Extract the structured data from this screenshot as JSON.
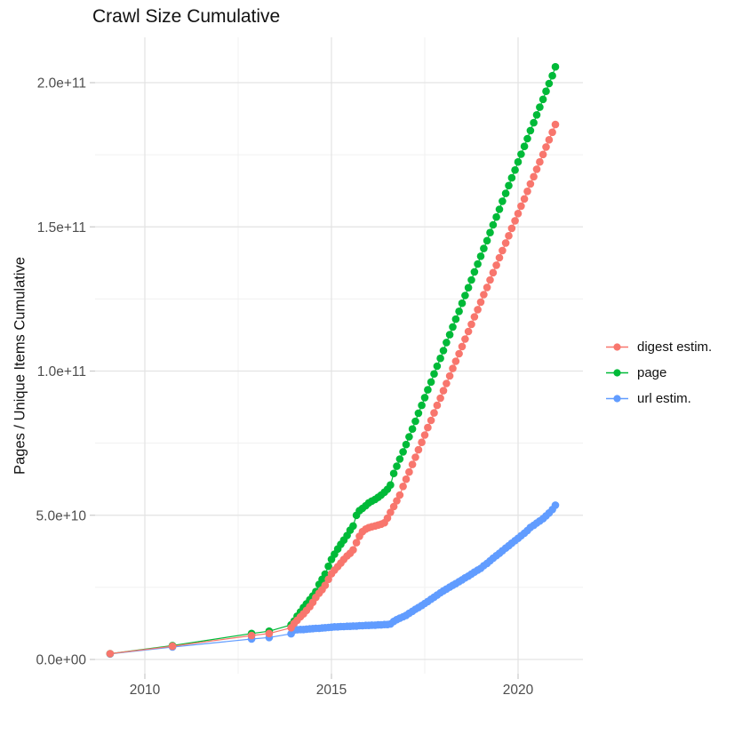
{
  "chart_data": {
    "type": "scatter",
    "title": "Crawl Size Cumulative",
    "xlabel": "",
    "ylabel": "Pages / Unique Items Cumulative",
    "y_value_unit": "1e9 (values below are billions of pages / unique items)",
    "grid": true,
    "legend_position": "right",
    "x_axis": {
      "ticks": [
        2010,
        2015,
        2020
      ],
      "tick_labels": [
        "2010",
        "2015",
        "2020"
      ],
      "minor_ticks": [
        2012.5,
        2017.5
      ],
      "range": [
        2008.65,
        2021.8
      ]
    },
    "y_axis": {
      "ticks": [
        0,
        50,
        100,
        150,
        200
      ],
      "tick_labels": [
        "0.0e+00",
        "5.0e+10",
        "1.0e+11",
        "1.5e+11",
        "2.0e+11"
      ],
      "minor_ticks": [
        25,
        75,
        125,
        175
      ],
      "range": [
        -5,
        215
      ]
    },
    "series": [
      {
        "name": "digest estim.",
        "color": "#F8766D",
        "points": [
          [
            2009.07,
            2.0
          ],
          [
            2010.74,
            4.6
          ],
          [
            2012.86,
            8.3
          ],
          [
            2013.33,
            9.0
          ],
          [
            2013.92,
            11.0
          ],
          [
            2014.0,
            12.5
          ],
          [
            2014.08,
            13.6
          ],
          [
            2014.17,
            14.8
          ],
          [
            2014.25,
            15.8
          ],
          [
            2014.33,
            17.0
          ],
          [
            2014.42,
            18.3
          ],
          [
            2014.5,
            19.8
          ],
          [
            2014.58,
            21.5
          ],
          [
            2014.67,
            23.0
          ],
          [
            2014.75,
            24.2
          ],
          [
            2014.83,
            25.7
          ],
          [
            2014.92,
            27.8
          ],
          [
            2015.0,
            29.7
          ],
          [
            2015.08,
            31.0
          ],
          [
            2015.17,
            32.2
          ],
          [
            2015.25,
            33.4
          ],
          [
            2015.33,
            34.7
          ],
          [
            2015.42,
            35.9
          ],
          [
            2015.5,
            36.8
          ],
          [
            2015.58,
            38.0
          ],
          [
            2015.67,
            40.5
          ],
          [
            2015.75,
            42.7
          ],
          [
            2015.83,
            44.3
          ],
          [
            2015.92,
            45.2
          ],
          [
            2016.0,
            45.7
          ],
          [
            2016.08,
            46.0
          ],
          [
            2016.17,
            46.3
          ],
          [
            2016.25,
            46.6
          ],
          [
            2016.33,
            46.9
          ],
          [
            2016.42,
            47.4
          ],
          [
            2016.5,
            49.0
          ],
          [
            2016.58,
            51.0
          ],
          [
            2016.67,
            53.0
          ],
          [
            2016.75,
            55.0
          ],
          [
            2016.83,
            57.0
          ],
          [
            2016.92,
            60.0
          ],
          [
            2017.0,
            62.5
          ],
          [
            2017.08,
            65.0
          ],
          [
            2017.17,
            67.6
          ],
          [
            2017.25,
            70.1
          ],
          [
            2017.33,
            72.7
          ],
          [
            2017.42,
            75.3
          ],
          [
            2017.5,
            77.8
          ],
          [
            2017.58,
            80.4
          ],
          [
            2017.67,
            82.9
          ],
          [
            2017.75,
            85.5
          ],
          [
            2017.83,
            88.1
          ],
          [
            2017.92,
            90.6
          ],
          [
            2018.0,
            93.2
          ],
          [
            2018.08,
            95.7
          ],
          [
            2018.17,
            98.3
          ],
          [
            2018.25,
            100.9
          ],
          [
            2018.33,
            103.4
          ],
          [
            2018.42,
            106.0
          ],
          [
            2018.5,
            108.5
          ],
          [
            2018.58,
            111.1
          ],
          [
            2018.67,
            113.7
          ],
          [
            2018.75,
            116.2
          ],
          [
            2018.83,
            118.8
          ],
          [
            2018.92,
            121.3
          ],
          [
            2019.0,
            123.9
          ],
          [
            2019.08,
            126.5
          ],
          [
            2019.17,
            129.0
          ],
          [
            2019.25,
            131.6
          ],
          [
            2019.33,
            134.1
          ],
          [
            2019.42,
            136.7
          ],
          [
            2019.5,
            139.3
          ],
          [
            2019.58,
            141.8
          ],
          [
            2019.67,
            144.4
          ],
          [
            2019.75,
            146.9
          ],
          [
            2019.83,
            149.5
          ],
          [
            2019.92,
            152.1
          ],
          [
            2020.0,
            154.6
          ],
          [
            2020.08,
            157.2
          ],
          [
            2020.17,
            159.7
          ],
          [
            2020.25,
            162.3
          ],
          [
            2020.33,
            164.9
          ],
          [
            2020.42,
            167.4
          ],
          [
            2020.5,
            170.0
          ],
          [
            2020.58,
            172.5
          ],
          [
            2020.67,
            175.1
          ],
          [
            2020.75,
            177.7
          ],
          [
            2020.83,
            180.2
          ],
          [
            2020.92,
            182.8
          ],
          [
            2021.0,
            185.5
          ]
        ]
      },
      {
        "name": "page",
        "color": "#00BA38",
        "points": [
          [
            2009.07,
            2.0
          ],
          [
            2010.74,
            4.8
          ],
          [
            2012.86,
            9.0
          ],
          [
            2013.33,
            9.8
          ],
          [
            2013.92,
            12.0
          ],
          [
            2014.0,
            13.3
          ],
          [
            2014.08,
            15.0
          ],
          [
            2014.17,
            16.5
          ],
          [
            2014.25,
            18.0
          ],
          [
            2014.33,
            19.3
          ],
          [
            2014.42,
            20.7
          ],
          [
            2014.5,
            22.0
          ],
          [
            2014.58,
            23.5
          ],
          [
            2014.67,
            26.0
          ],
          [
            2014.75,
            27.8
          ],
          [
            2014.83,
            29.6
          ],
          [
            2014.92,
            32.3
          ],
          [
            2015.0,
            34.7
          ],
          [
            2015.08,
            36.5
          ],
          [
            2015.17,
            38.3
          ],
          [
            2015.25,
            39.9
          ],
          [
            2015.33,
            41.4
          ],
          [
            2015.42,
            43.0
          ],
          [
            2015.5,
            44.8
          ],
          [
            2015.58,
            46.3
          ],
          [
            2015.67,
            50.0
          ],
          [
            2015.75,
            51.6
          ],
          [
            2015.83,
            52.4
          ],
          [
            2015.92,
            53.3
          ],
          [
            2016.0,
            54.3
          ],
          [
            2016.08,
            54.9
          ],
          [
            2016.17,
            55.5
          ],
          [
            2016.25,
            56.2
          ],
          [
            2016.33,
            57.0
          ],
          [
            2016.42,
            58.0
          ],
          [
            2016.5,
            59.0
          ],
          [
            2016.58,
            60.5
          ],
          [
            2016.67,
            64.5
          ],
          [
            2016.75,
            67.0
          ],
          [
            2016.83,
            69.5
          ],
          [
            2016.92,
            72.0
          ],
          [
            2017.0,
            74.5
          ],
          [
            2017.08,
            77.2
          ],
          [
            2017.17,
            79.9
          ],
          [
            2017.25,
            82.6
          ],
          [
            2017.33,
            85.4
          ],
          [
            2017.42,
            88.1
          ],
          [
            2017.5,
            90.8
          ],
          [
            2017.58,
            93.5
          ],
          [
            2017.67,
            96.2
          ],
          [
            2017.75,
            99.0
          ],
          [
            2017.83,
            101.7
          ],
          [
            2017.92,
            104.4
          ],
          [
            2018.0,
            107.1
          ],
          [
            2018.08,
            109.9
          ],
          [
            2018.17,
            112.6
          ],
          [
            2018.25,
            115.3
          ],
          [
            2018.33,
            118.0
          ],
          [
            2018.42,
            120.7
          ],
          [
            2018.5,
            123.5
          ],
          [
            2018.58,
            126.2
          ],
          [
            2018.67,
            128.9
          ],
          [
            2018.75,
            131.6
          ],
          [
            2018.83,
            134.4
          ],
          [
            2018.92,
            137.1
          ],
          [
            2019.0,
            139.8
          ],
          [
            2019.08,
            142.5
          ],
          [
            2019.17,
            145.2
          ],
          [
            2019.25,
            148.0
          ],
          [
            2019.33,
            150.7
          ],
          [
            2019.42,
            153.4
          ],
          [
            2019.5,
            156.1
          ],
          [
            2019.58,
            158.9
          ],
          [
            2019.67,
            161.6
          ],
          [
            2019.75,
            164.3
          ],
          [
            2019.83,
            167.0
          ],
          [
            2019.92,
            169.7
          ],
          [
            2020.0,
            172.5
          ],
          [
            2020.08,
            175.2
          ],
          [
            2020.17,
            177.9
          ],
          [
            2020.25,
            180.6
          ],
          [
            2020.33,
            183.4
          ],
          [
            2020.42,
            186.1
          ],
          [
            2020.5,
            188.8
          ],
          [
            2020.58,
            191.5
          ],
          [
            2020.67,
            194.2
          ],
          [
            2020.75,
            197.0
          ],
          [
            2020.83,
            199.7
          ],
          [
            2020.92,
            202.4
          ],
          [
            2021.0,
            205.5
          ]
        ]
      },
      {
        "name": "url estim.",
        "color": "#619CFF",
        "points": [
          [
            2009.07,
            1.9
          ],
          [
            2010.74,
            4.3
          ],
          [
            2012.86,
            7.1
          ],
          [
            2013.33,
            7.6
          ],
          [
            2013.92,
            8.9
          ],
          [
            2014.0,
            10.2
          ],
          [
            2014.08,
            10.3
          ],
          [
            2014.17,
            10.4
          ],
          [
            2014.25,
            10.4
          ],
          [
            2014.33,
            10.5
          ],
          [
            2014.42,
            10.6
          ],
          [
            2014.5,
            10.7
          ],
          [
            2014.58,
            10.8
          ],
          [
            2014.67,
            10.8
          ],
          [
            2014.75,
            10.9
          ],
          [
            2014.83,
            11.0
          ],
          [
            2014.92,
            11.1
          ],
          [
            2015.0,
            11.2
          ],
          [
            2015.08,
            11.3
          ],
          [
            2015.17,
            11.3
          ],
          [
            2015.25,
            11.4
          ],
          [
            2015.33,
            11.4
          ],
          [
            2015.42,
            11.5
          ],
          [
            2015.5,
            11.5
          ],
          [
            2015.58,
            11.6
          ],
          [
            2015.67,
            11.6
          ],
          [
            2015.75,
            11.7
          ],
          [
            2015.83,
            11.7
          ],
          [
            2015.92,
            11.8
          ],
          [
            2016.0,
            11.8
          ],
          [
            2016.08,
            11.9
          ],
          [
            2016.17,
            11.9
          ],
          [
            2016.25,
            12.0
          ],
          [
            2016.33,
            12.0
          ],
          [
            2016.42,
            12.1
          ],
          [
            2016.5,
            12.1
          ],
          [
            2016.58,
            12.3
          ],
          [
            2016.67,
            13.2
          ],
          [
            2016.75,
            13.8
          ],
          [
            2016.83,
            14.3
          ],
          [
            2016.92,
            14.8
          ],
          [
            2017.0,
            15.3
          ],
          [
            2017.08,
            16.0
          ],
          [
            2017.17,
            16.7
          ],
          [
            2017.25,
            17.4
          ],
          [
            2017.33,
            18.0
          ],
          [
            2017.42,
            18.7
          ],
          [
            2017.5,
            19.4
          ],
          [
            2017.58,
            20.1
          ],
          [
            2017.67,
            20.9
          ],
          [
            2017.75,
            21.6
          ],
          [
            2017.83,
            22.3
          ],
          [
            2017.92,
            23.1
          ],
          [
            2018.0,
            23.8
          ],
          [
            2018.08,
            24.4
          ],
          [
            2018.17,
            25.1
          ],
          [
            2018.25,
            25.7
          ],
          [
            2018.33,
            26.3
          ],
          [
            2018.42,
            27.0
          ],
          [
            2018.5,
            27.6
          ],
          [
            2018.58,
            28.3
          ],
          [
            2018.67,
            28.9
          ],
          [
            2018.75,
            29.6
          ],
          [
            2018.83,
            30.3
          ],
          [
            2018.92,
            31.0
          ],
          [
            2019.0,
            31.6
          ],
          [
            2019.08,
            32.5
          ],
          [
            2019.17,
            33.3
          ],
          [
            2019.25,
            34.2
          ],
          [
            2019.33,
            35.1
          ],
          [
            2019.42,
            36.0
          ],
          [
            2019.5,
            36.8
          ],
          [
            2019.58,
            37.7
          ],
          [
            2019.67,
            38.6
          ],
          [
            2019.75,
            39.4
          ],
          [
            2019.83,
            40.3
          ],
          [
            2019.92,
            41.2
          ],
          [
            2020.0,
            42.0
          ],
          [
            2020.08,
            42.9
          ],
          [
            2020.17,
            43.8
          ],
          [
            2020.25,
            44.7
          ],
          [
            2020.33,
            45.8
          ],
          [
            2020.42,
            46.5
          ],
          [
            2020.5,
            47.3
          ],
          [
            2020.58,
            48.0
          ],
          [
            2020.67,
            48.8
          ],
          [
            2020.75,
            49.8
          ],
          [
            2020.83,
            50.8
          ],
          [
            2020.92,
            52.0
          ],
          [
            2021.0,
            53.5
          ]
        ]
      }
    ],
    "style": {
      "grid_major_color": "#e3e3e3",
      "grid_minor_color": "#f0f0f0",
      "tick_color": "#c9c9c9",
      "axis_text_color": "#4d4d4d",
      "point_radius": 4.3
    }
  }
}
